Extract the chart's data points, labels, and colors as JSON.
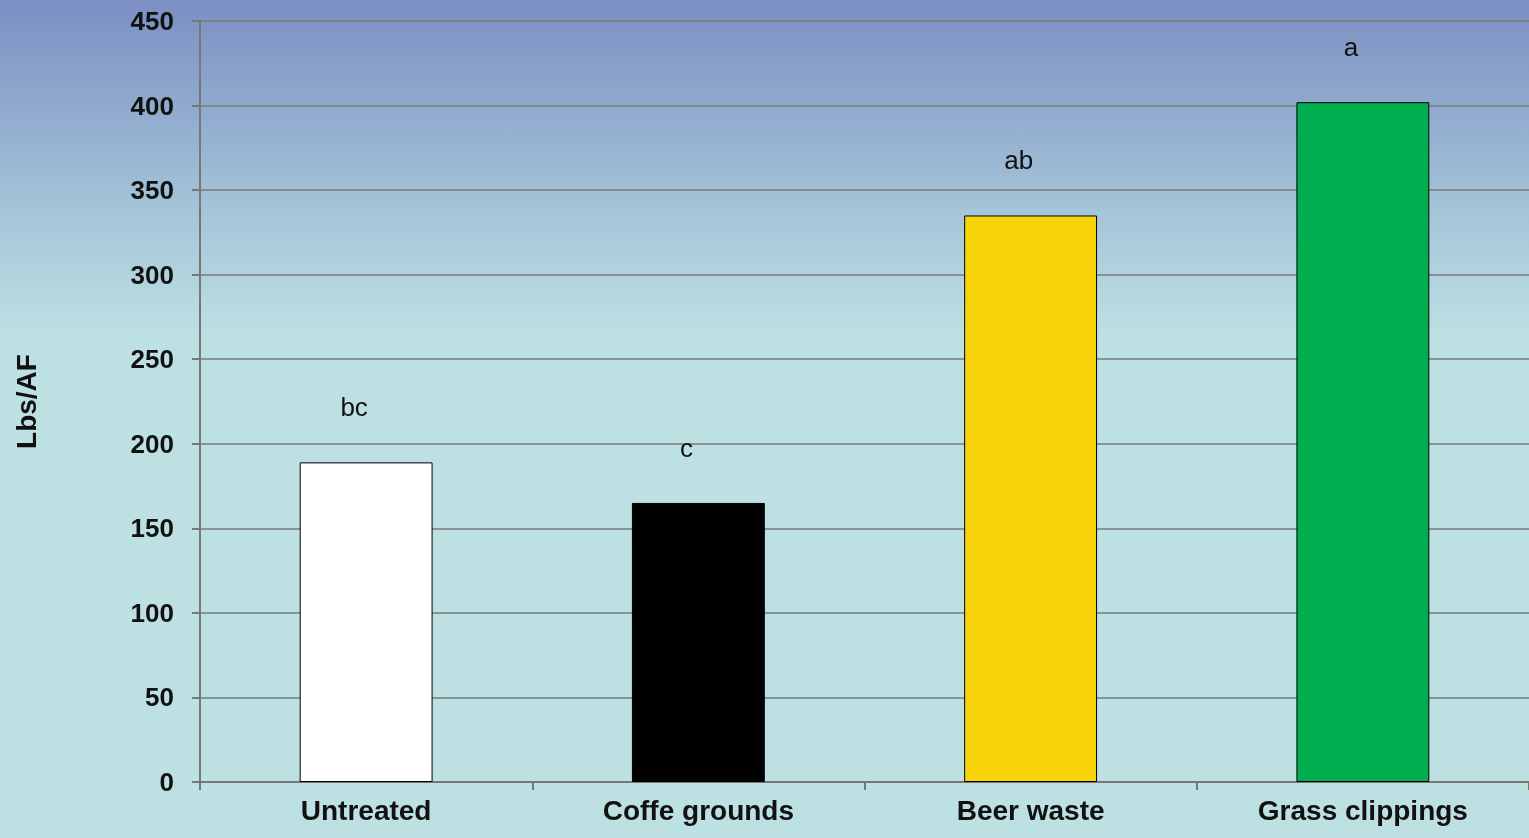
{
  "chart_data": {
    "type": "bar",
    "ylabel": "Lbs/AF",
    "categories": [
      "Untreated",
      "Coffe grounds",
      "Beer waste",
      "Grass clippings"
    ],
    "values": [
      189,
      165,
      335,
      402
    ],
    "colors": [
      "#ffffff",
      "#000000",
      "#f8d50a",
      "#00ae4f"
    ],
    "ylim": [
      0,
      450
    ],
    "yticks": [
      0,
      50,
      100,
      150,
      200,
      250,
      300,
      350,
      400,
      450
    ],
    "grid": "y",
    "annotations": [
      "bc",
      "c",
      "ab",
      "a"
    ]
  }
}
